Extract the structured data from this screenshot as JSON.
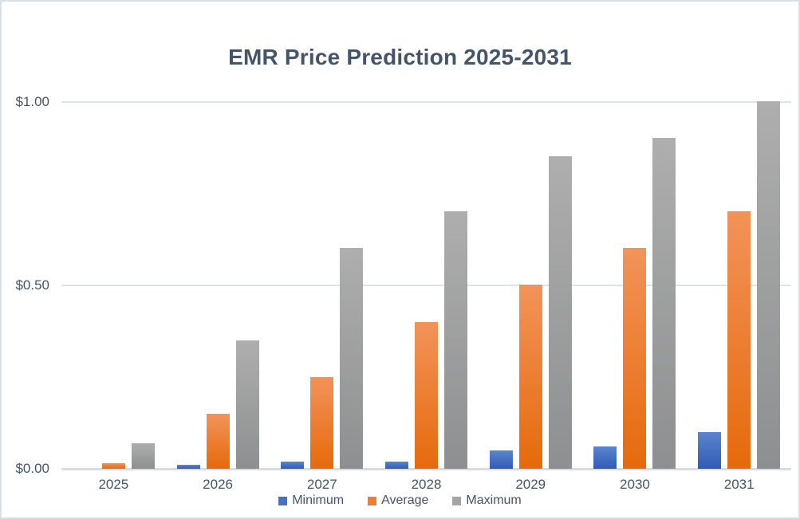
{
  "title": "EMR Price Prediction 2025-2031",
  "colors": {
    "text": "#44546a",
    "gridline": "#dde3ea",
    "axis_line": "#d6dde6",
    "chart_border": "#d9dfe8",
    "background": "#ffffff"
  },
  "chart_data": {
    "type": "bar",
    "title": "EMR Price Prediction 2025-2031",
    "categories": [
      "2025",
      "2026",
      "2027",
      "2028",
      "2029",
      "2030",
      "2031"
    ],
    "series": [
      {
        "name": "Minimum",
        "color": "#4472c4",
        "gradient_top": "#5d85cf",
        "gradient_bottom": "#2e5cb5",
        "values": [
          0,
          0.01,
          0.02,
          0.02,
          0.05,
          0.06,
          0.1
        ]
      },
      {
        "name": "Average",
        "color": "#ed7d31",
        "gradient_top": "#f2935a",
        "gradient_bottom": "#e56a0b",
        "values": [
          0.015,
          0.15,
          0.25,
          0.4,
          0.5,
          0.6,
          0.7
        ]
      },
      {
        "name": "Maximum",
        "color": "#a5a5a5",
        "gradient_top": "#aeaeae",
        "gradient_bottom": "#8e8f90",
        "values": [
          0.07,
          0.35,
          0.6,
          0.7,
          0.85,
          0.9,
          1.0
        ]
      }
    ],
    "xlabel": "",
    "ylabel": "",
    "ylim": [
      0,
      1.0
    ],
    "yticks": [
      {
        "value": 0,
        "label": "$0.00"
      },
      {
        "value": 0.5,
        "label": "$0.50"
      },
      {
        "value": 1,
        "label": "$1.00"
      }
    ],
    "grid": true,
    "legend_position": "bottom"
  }
}
